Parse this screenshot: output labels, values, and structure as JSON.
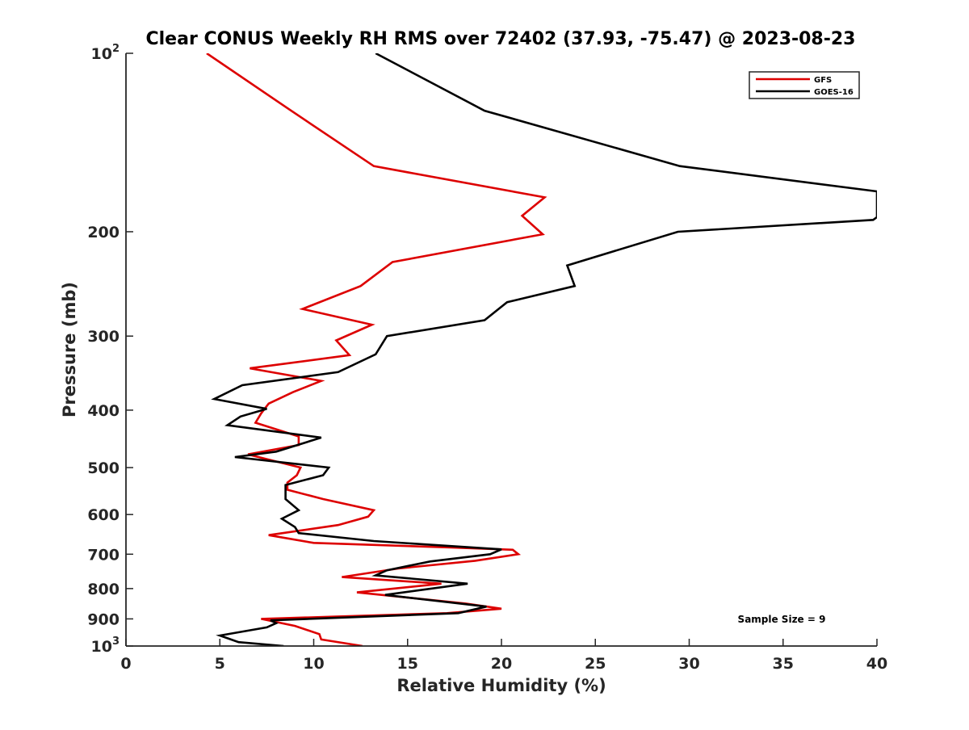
{
  "chart_data": {
    "type": "line",
    "title": "Clear CONUS Weekly RH RMS over 72402 (37.93, -75.47) @ 2023-08-23",
    "xlabel": "Relative Humidity (%)",
    "ylabel": "Pressure (mb)",
    "xlim": [
      0,
      40
    ],
    "ylim": [
      100,
      1000
    ],
    "yscale": "log",
    "y_reversed": true,
    "xticks": [
      0,
      5,
      10,
      15,
      20,
      25,
      30,
      35,
      40
    ],
    "xtick_labels": [
      "0",
      "5",
      "10",
      "15",
      "20",
      "25",
      "30",
      "35",
      "40"
    ],
    "yticks": [
      100,
      200,
      300,
      400,
      500,
      600,
      700,
      800,
      900,
      1000
    ],
    "ytick_labels": [
      {
        "base": "10",
        "exp": "2"
      },
      {
        "base": "200",
        "exp": ""
      },
      {
        "base": "300",
        "exp": ""
      },
      {
        "base": "400",
        "exp": ""
      },
      {
        "base": "500",
        "exp": ""
      },
      {
        "base": "600",
        "exp": ""
      },
      {
        "base": "700",
        "exp": ""
      },
      {
        "base": "800",
        "exp": ""
      },
      {
        "base": "900",
        "exp": ""
      },
      {
        "base": "10",
        "exp": "3"
      }
    ],
    "legend_position": "top-right",
    "annotation": "Sample Size = 9",
    "series": [
      {
        "name": "GFS",
        "color": "#dd0000",
        "points": [
          [
            4.3,
            100
          ],
          [
            8.8,
            125
          ],
          [
            13.2,
            155
          ],
          [
            22.3,
            175
          ],
          [
            21.1,
            188
          ],
          [
            22.2,
            202
          ],
          [
            14.2,
            225
          ],
          [
            12.5,
            247
          ],
          [
            9.4,
            270
          ],
          [
            13.1,
            287
          ],
          [
            11.2,
            305
          ],
          [
            11.9,
            323
          ],
          [
            6.6,
            340
          ],
          [
            10.4,
            357
          ],
          [
            8.9,
            373
          ],
          [
            7.6,
            390
          ],
          [
            7.2,
            405
          ],
          [
            6.9,
            420
          ],
          [
            9.2,
            443
          ],
          [
            9.2,
            458
          ],
          [
            6.5,
            475
          ],
          [
            9.3,
            500
          ],
          [
            9.1,
            515
          ],
          [
            8.6,
            530
          ],
          [
            8.6,
            545
          ],
          [
            10.5,
            565
          ],
          [
            13.2,
            590
          ],
          [
            12.9,
            605
          ],
          [
            11.3,
            625
          ],
          [
            7.6,
            650
          ],
          [
            10.0,
            670
          ],
          [
            17.3,
            682
          ],
          [
            20.6,
            688
          ],
          [
            20.9,
            700
          ],
          [
            18.6,
            718
          ],
          [
            14.5,
            740
          ],
          [
            11.5,
            765
          ],
          [
            16.8,
            785
          ],
          [
            12.3,
            812
          ],
          [
            18.1,
            848
          ],
          [
            20.0,
            865
          ],
          [
            17.1,
            880
          ],
          [
            7.2,
            900
          ],
          [
            9.0,
            925
          ],
          [
            10.3,
            955
          ],
          [
            10.4,
            975
          ],
          [
            12.6,
            1000
          ]
        ]
      },
      {
        "name": "GOES-16",
        "color": "#000000",
        "points": [
          [
            13.3,
            100
          ],
          [
            19.1,
            125
          ],
          [
            29.5,
            155
          ],
          [
            40.0,
            171
          ],
          [
            40.0,
            189
          ],
          [
            39.8,
            191
          ],
          [
            29.4,
            200
          ],
          [
            23.5,
            228
          ],
          [
            23.9,
            247
          ],
          [
            20.3,
            263
          ],
          [
            19.1,
            282
          ],
          [
            13.9,
            300
          ],
          [
            13.3,
            322
          ],
          [
            11.3,
            345
          ],
          [
            6.2,
            363
          ],
          [
            4.7,
            383
          ],
          [
            7.5,
            398
          ],
          [
            6.1,
            410
          ],
          [
            5.4,
            424
          ],
          [
            10.4,
            445
          ],
          [
            8.0,
            470
          ],
          [
            5.8,
            480
          ],
          [
            10.8,
            500
          ],
          [
            10.5,
            515
          ],
          [
            8.5,
            535
          ],
          [
            8.5,
            565
          ],
          [
            9.2,
            590
          ],
          [
            8.3,
            610
          ],
          [
            9.0,
            630
          ],
          [
            9.2,
            645
          ],
          [
            13.2,
            665
          ],
          [
            20.0,
            687
          ],
          [
            19.4,
            700
          ],
          [
            16.2,
            720
          ],
          [
            13.9,
            745
          ],
          [
            13.3,
            760
          ],
          [
            18.2,
            785
          ],
          [
            13.8,
            820
          ],
          [
            19.2,
            858
          ],
          [
            17.7,
            880
          ],
          [
            7.7,
            905
          ],
          [
            8.0,
            915
          ],
          [
            7.5,
            930
          ],
          [
            5.0,
            960
          ],
          [
            6.0,
            985
          ],
          [
            8.4,
            1000
          ]
        ]
      }
    ]
  }
}
